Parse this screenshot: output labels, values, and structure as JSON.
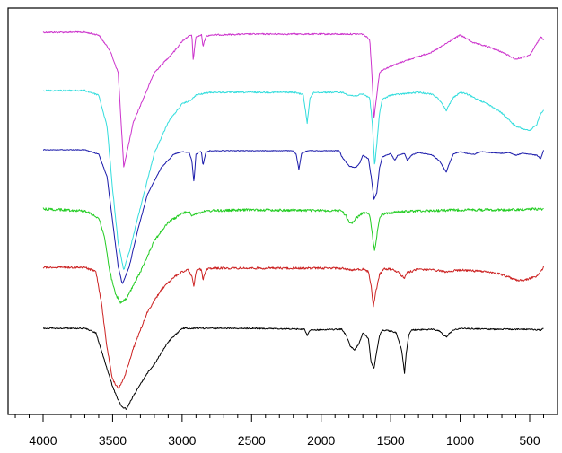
{
  "chart_data": {
    "type": "line",
    "title": "",
    "xlabel": "",
    "ylabel": "",
    "xlim": [
      4000,
      400
    ],
    "x_reversed": true,
    "x_ticks": [
      4000,
      3500,
      3000,
      2500,
      2000,
      1500,
      1000,
      500
    ],
    "x_tick_labels": [
      "4000",
      "3500",
      "3000",
      "2500",
      "2000",
      "1500",
      "1000",
      "500"
    ],
    "y_ticks_visible": false,
    "grid": false,
    "legend": "none",
    "series": [
      {
        "color": "#cc33cc",
        "noise": 0.8,
        "points": [
          [
            4000,
            0
          ],
          [
            3700,
            0
          ],
          [
            3600,
            -3
          ],
          [
            3520,
            -20
          ],
          [
            3460,
            -45
          ],
          [
            3420,
            -150
          ],
          [
            3350,
            -100
          ],
          [
            3200,
            -45
          ],
          [
            3050,
            -20
          ],
          [
            3000,
            -10
          ],
          [
            2960,
            -5
          ],
          [
            2930,
            -3
          ],
          [
            2920,
            -30
          ],
          [
            2900,
            -5
          ],
          [
            2860,
            -3
          ],
          [
            2850,
            -16
          ],
          [
            2830,
            -5
          ],
          [
            2800,
            -3
          ],
          [
            2500,
            -2
          ],
          [
            2000,
            -2
          ],
          [
            1700,
            -2
          ],
          [
            1650,
            -8
          ],
          [
            1630,
            -60
          ],
          [
            1620,
            -96
          ],
          [
            1600,
            -70
          ],
          [
            1580,
            -45
          ],
          [
            1560,
            -42
          ],
          [
            1500,
            -38
          ],
          [
            1400,
            -32
          ],
          [
            1200,
            -22
          ],
          [
            1000,
            -3
          ],
          [
            900,
            -12
          ],
          [
            800,
            -16
          ],
          [
            700,
            -22
          ],
          [
            600,
            -30
          ],
          [
            500,
            -26
          ],
          [
            420,
            -5
          ],
          [
            400,
            -8
          ]
        ]
      },
      {
        "color": "#33dddd",
        "noise": 0.8,
        "points": [
          [
            4000,
            0
          ],
          [
            3700,
            0
          ],
          [
            3600,
            -5
          ],
          [
            3540,
            -40
          ],
          [
            3500,
            -110
          ],
          [
            3460,
            -170
          ],
          [
            3420,
            -200
          ],
          [
            3380,
            -180
          ],
          [
            3300,
            -130
          ],
          [
            3200,
            -70
          ],
          [
            3100,
            -35
          ],
          [
            3000,
            -15
          ],
          [
            2930,
            -10
          ],
          [
            2900,
            -5
          ],
          [
            2800,
            -2
          ],
          [
            2200,
            -2
          ],
          [
            2130,
            -4
          ],
          [
            2100,
            -36
          ],
          [
            2080,
            -8
          ],
          [
            2050,
            -2
          ],
          [
            1850,
            -2
          ],
          [
            1800,
            -5
          ],
          [
            1760,
            -6
          ],
          [
            1700,
            -4
          ],
          [
            1650,
            -8
          ],
          [
            1630,
            -40
          ],
          [
            1615,
            -85
          ],
          [
            1600,
            -60
          ],
          [
            1580,
            -25
          ],
          [
            1560,
            -10
          ],
          [
            1500,
            -5
          ],
          [
            1300,
            -2
          ],
          [
            1200,
            -4
          ],
          [
            1150,
            -10
          ],
          [
            1100,
            -22
          ],
          [
            1050,
            -8
          ],
          [
            1000,
            -2
          ],
          [
            950,
            -4
          ],
          [
            900,
            -8
          ],
          [
            800,
            -15
          ],
          [
            700,
            -25
          ],
          [
            600,
            -40
          ],
          [
            500,
            -45
          ],
          [
            450,
            -38
          ],
          [
            420,
            -25
          ],
          [
            400,
            -22
          ]
        ]
      },
      {
        "color": "#1a1aaa",
        "noise": 0.4,
        "points": [
          [
            4000,
            0
          ],
          [
            3700,
            0
          ],
          [
            3600,
            -5
          ],
          [
            3540,
            -30
          ],
          [
            3500,
            -80
          ],
          [
            3460,
            -130
          ],
          [
            3430,
            -150
          ],
          [
            3380,
            -130
          ],
          [
            3320,
            -90
          ],
          [
            3250,
            -50
          ],
          [
            3150,
            -20
          ],
          [
            3060,
            -5
          ],
          [
            3000,
            -2
          ],
          [
            2950,
            -3
          ],
          [
            2930,
            -12
          ],
          [
            2915,
            -36
          ],
          [
            2900,
            -5
          ],
          [
            2870,
            -2
          ],
          [
            2860,
            -3
          ],
          [
            2850,
            -18
          ],
          [
            2830,
            -3
          ],
          [
            2800,
            -1
          ],
          [
            2200,
            -1
          ],
          [
            2180,
            -5
          ],
          [
            2160,
            -22
          ],
          [
            2140,
            -4
          ],
          [
            2100,
            -1
          ],
          [
            1870,
            -1
          ],
          [
            1850,
            -8
          ],
          [
            1800,
            -18
          ],
          [
            1750,
            -20
          ],
          [
            1720,
            -14
          ],
          [
            1700,
            -6
          ],
          [
            1660,
            -10
          ],
          [
            1640,
            -30
          ],
          [
            1620,
            -55
          ],
          [
            1600,
            -48
          ],
          [
            1580,
            -20
          ],
          [
            1560,
            -8
          ],
          [
            1500,
            -4
          ],
          [
            1470,
            -12
          ],
          [
            1450,
            -6
          ],
          [
            1400,
            -4
          ],
          [
            1380,
            -12
          ],
          [
            1350,
            -6
          ],
          [
            1300,
            -3
          ],
          [
            1200,
            -6
          ],
          [
            1150,
            -12
          ],
          [
            1100,
            -25
          ],
          [
            1080,
            -16
          ],
          [
            1050,
            -5
          ],
          [
            1000,
            -2
          ],
          [
            950,
            -4
          ],
          [
            900,
            -5
          ],
          [
            850,
            -2
          ],
          [
            800,
            -3
          ],
          [
            700,
            -4
          ],
          [
            650,
            -3
          ],
          [
            600,
            -6
          ],
          [
            550,
            -4
          ],
          [
            450,
            -6
          ],
          [
            420,
            -10
          ],
          [
            400,
            0
          ]
        ]
      },
      {
        "color": "#22cc22",
        "noise": 1.4,
        "points": [
          [
            4000,
            0
          ],
          [
            3700,
            -2
          ],
          [
            3600,
            -10
          ],
          [
            3560,
            -30
          ],
          [
            3520,
            -70
          ],
          [
            3480,
            -95
          ],
          [
            3440,
            -105
          ],
          [
            3400,
            -100
          ],
          [
            3300,
            -70
          ],
          [
            3200,
            -35
          ],
          [
            3100,
            -15
          ],
          [
            3000,
            -5
          ],
          [
            2950,
            -3
          ],
          [
            2930,
            -8
          ],
          [
            2910,
            -5
          ],
          [
            2800,
            -2
          ],
          [
            2500,
            -1
          ],
          [
            1850,
            -2
          ],
          [
            1820,
            -8
          ],
          [
            1800,
            -15
          ],
          [
            1780,
            -16
          ],
          [
            1760,
            -12
          ],
          [
            1700,
            -4
          ],
          [
            1650,
            -6
          ],
          [
            1630,
            -30
          ],
          [
            1615,
            -48
          ],
          [
            1600,
            -30
          ],
          [
            1580,
            -10
          ],
          [
            1560,
            -6
          ],
          [
            1500,
            -4
          ],
          [
            1400,
            -3
          ],
          [
            1300,
            -2
          ],
          [
            1200,
            -2
          ],
          [
            1000,
            -1
          ],
          [
            800,
            -1
          ],
          [
            600,
            -1
          ],
          [
            500,
            0
          ],
          [
            400,
            0
          ]
        ]
      },
      {
        "color": "#cc2222",
        "noise": 1.2,
        "points": [
          [
            4000,
            0
          ],
          [
            3700,
            0
          ],
          [
            3620,
            -5
          ],
          [
            3580,
            -40
          ],
          [
            3540,
            -90
          ],
          [
            3500,
            -125
          ],
          [
            3460,
            -135
          ],
          [
            3420,
            -125
          ],
          [
            3350,
            -90
          ],
          [
            3250,
            -50
          ],
          [
            3150,
            -25
          ],
          [
            3050,
            -10
          ],
          [
            3000,
            -5
          ],
          [
            2960,
            -3
          ],
          [
            2930,
            -10
          ],
          [
            2915,
            -22
          ],
          [
            2900,
            -5
          ],
          [
            2880,
            -2
          ],
          [
            2860,
            -3
          ],
          [
            2850,
            -14
          ],
          [
            2830,
            -3
          ],
          [
            2800,
            -1
          ],
          [
            2000,
            -1
          ],
          [
            1850,
            -1
          ],
          [
            1800,
            -3
          ],
          [
            1700,
            -2
          ],
          [
            1660,
            -5
          ],
          [
            1640,
            -20
          ],
          [
            1625,
            -44
          ],
          [
            1610,
            -30
          ],
          [
            1580,
            -8
          ],
          [
            1550,
            -2
          ],
          [
            1500,
            -2
          ],
          [
            1450,
            -5
          ],
          [
            1400,
            -12
          ],
          [
            1380,
            -6
          ],
          [
            1300,
            -2
          ],
          [
            1200,
            -3
          ],
          [
            1100,
            -5
          ],
          [
            1000,
            -3
          ],
          [
            800,
            -5
          ],
          [
            700,
            -8
          ],
          [
            600,
            -14
          ],
          [
            550,
            -15
          ],
          [
            450,
            -10
          ],
          [
            400,
            0
          ]
        ]
      },
      {
        "color": "#000000",
        "noise": 0.7,
        "points": [
          [
            4000,
            0
          ],
          [
            3700,
            0
          ],
          [
            3620,
            -5
          ],
          [
            3580,
            -25
          ],
          [
            3540,
            -45
          ],
          [
            3500,
            -65
          ],
          [
            3460,
            -80
          ],
          [
            3430,
            -88
          ],
          [
            3400,
            -90
          ],
          [
            3350,
            -75
          ],
          [
            3250,
            -50
          ],
          [
            3200,
            -40
          ],
          [
            3100,
            -15
          ],
          [
            3020,
            -3
          ],
          [
            3000,
            0
          ],
          [
            2500,
            0
          ],
          [
            2120,
            -1
          ],
          [
            2100,
            -8
          ],
          [
            2080,
            -2
          ],
          [
            1850,
            -1
          ],
          [
            1820,
            -8
          ],
          [
            1790,
            -20
          ],
          [
            1760,
            -24
          ],
          [
            1730,
            -18
          ],
          [
            1700,
            -5
          ],
          [
            1680,
            -8
          ],
          [
            1660,
            -12
          ],
          [
            1640,
            -38
          ],
          [
            1620,
            -45
          ],
          [
            1600,
            -25
          ],
          [
            1580,
            -8
          ],
          [
            1560,
            -2
          ],
          [
            1500,
            -3
          ],
          [
            1460,
            -5
          ],
          [
            1420,
            -25
          ],
          [
            1400,
            -50
          ],
          [
            1390,
            -30
          ],
          [
            1370,
            -8
          ],
          [
            1350,
            -2
          ],
          [
            1200,
            -1
          ],
          [
            1150,
            -3
          ],
          [
            1100,
            -10
          ],
          [
            1080,
            -6
          ],
          [
            1050,
            -2
          ],
          [
            1000,
            0
          ],
          [
            800,
            -1
          ],
          [
            600,
            -1
          ],
          [
            500,
            -1
          ],
          [
            420,
            -2
          ],
          [
            400,
            0
          ]
        ]
      }
    ]
  }
}
